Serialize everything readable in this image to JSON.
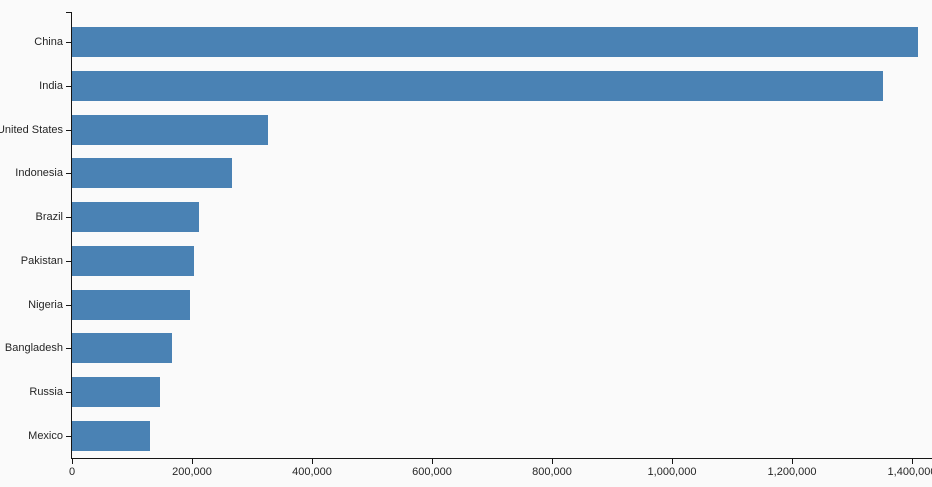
{
  "chart_data": {
    "type": "bar",
    "orientation": "horizontal",
    "title": "",
    "xlabel": "",
    "ylabel": "",
    "categories": [
      "China",
      "India",
      "United States",
      "Indonesia",
      "Brazil",
      "Pakistan",
      "Nigeria",
      "Bangladesh",
      "Russia",
      "Mexico"
    ],
    "values": [
      1410000,
      1352000,
      327000,
      266000,
      211000,
      203000,
      197000,
      166000,
      146000,
      130000
    ],
    "xlim": [
      0,
      1433333
    ],
    "x_ticks": [
      0,
      200000,
      400000,
      600000,
      800000,
      1000000,
      1200000,
      1400000
    ],
    "x_tick_labels": [
      "0",
      "200,000",
      "400,000",
      "600,000",
      "800,000",
      "1,000,000",
      "1,200,000",
      "1,400,000"
    ],
    "grid": false,
    "legend": "none",
    "bar_color": "#4a82b4",
    "axis_color": "#161616",
    "label_color": "#262626",
    "background": "#fafafa"
  }
}
